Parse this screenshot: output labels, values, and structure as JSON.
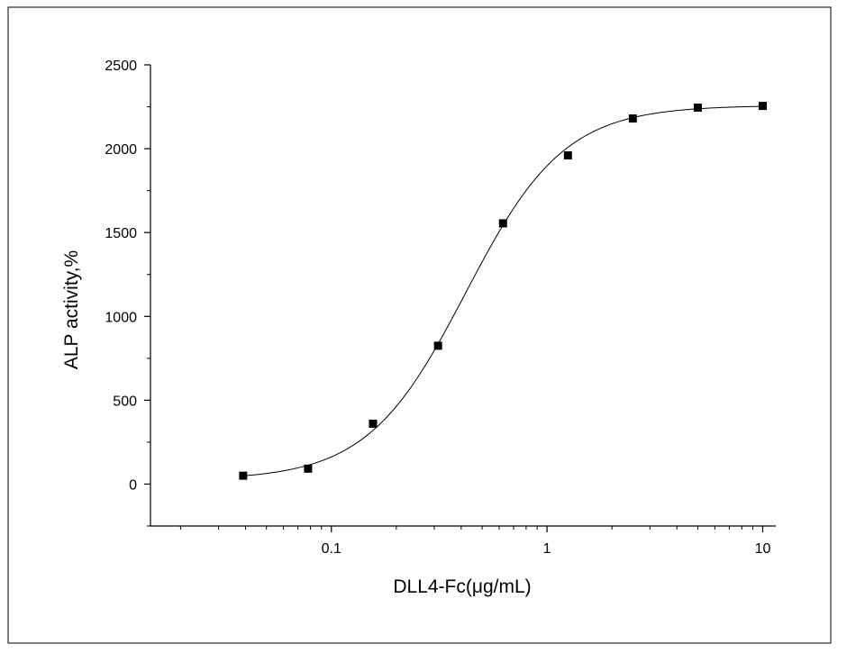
{
  "chart_data": {
    "type": "scatter",
    "title": "",
    "xlabel": "DLL4-Fc(μg/mL)",
    "ylabel": "ALP activity,%",
    "x_scale": "log",
    "xlim": [
      0.0145,
      11.5
    ],
    "ylim": [
      -250,
      2500
    ],
    "x_ticks": [
      {
        "value": 0.1,
        "label": "0.1"
      },
      {
        "value": 1,
        "label": "1"
      },
      {
        "value": 10,
        "label": "10"
      }
    ],
    "y_ticks": [
      {
        "value": 0,
        "label": "0"
      },
      {
        "value": 500,
        "label": "500"
      },
      {
        "value": 1000,
        "label": "1000"
      },
      {
        "value": 1500,
        "label": "1500"
      },
      {
        "value": 2000,
        "label": "2000"
      },
      {
        "value": 2500,
        "label": "2500"
      }
    ],
    "grid": false,
    "legend": "none",
    "series": [
      {
        "points": [
          {
            "x": 0.039,
            "y": 50
          },
          {
            "x": 0.078,
            "y": 92
          },
          {
            "x": 0.156,
            "y": 360
          },
          {
            "x": 0.3125,
            "y": 825
          },
          {
            "x": 0.625,
            "y": 1555
          },
          {
            "x": 1.25,
            "y": 1960
          },
          {
            "x": 2.5,
            "y": 2180
          },
          {
            "x": 5,
            "y": 2245
          },
          {
            "x": 10,
            "y": 2255
          }
        ],
        "marker": "square",
        "color": "#000000"
      }
    ],
    "fit": {
      "model": "4PL",
      "bottom": 25,
      "top": 2258,
      "ec50": 0.42,
      "hill": 1.9,
      "color": "#000000"
    }
  }
}
